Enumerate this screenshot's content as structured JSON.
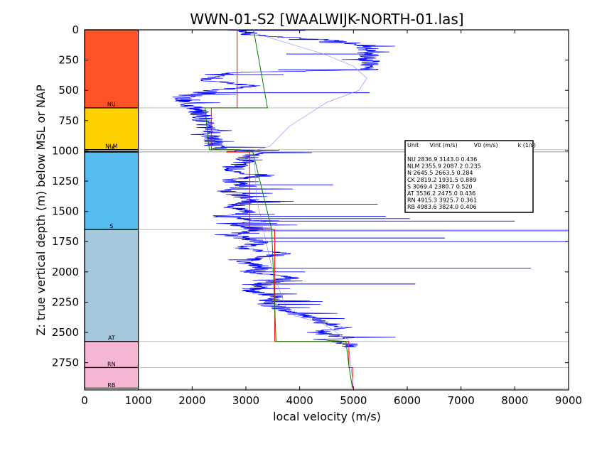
{
  "chart_data": {
    "type": "line",
    "title": "WWN-01-S2 [WAALWIJK-NORTH-01.las]",
    "xlabel": "local velocity (m/s)",
    "ylabel": "Z: true vertical depth (m) below MSL or NAP",
    "xlim": [
      0,
      9000
    ],
    "ylim": [
      2975,
      0
    ],
    "x_ticks": [
      "0",
      "1000",
      "2000",
      "3000",
      "4000",
      "5000",
      "6000",
      "7000",
      "8000",
      "9000"
    ],
    "x_tick_values": [
      0,
      1000,
      2000,
      3000,
      4000,
      5000,
      6000,
      7000,
      8000,
      9000
    ],
    "y_ticks": [
      "0",
      "250",
      "500",
      "750",
      "1000",
      "1250",
      "1500",
      "1750",
      "2000",
      "2250",
      "2500",
      "2750"
    ],
    "y_tick_values": [
      0,
      250,
      500,
      750,
      1000,
      1250,
      1500,
      1750,
      2000,
      2250,
      2500,
      2750
    ],
    "grid": false,
    "units": [
      {
        "name": "NU",
        "top": 0,
        "base": 645,
        "color": "#FF5226"
      },
      {
        "name": "NLM",
        "top": 645,
        "base": 990,
        "color": "#FFD000"
      },
      {
        "name": "CK",
        "top": 990,
        "base": 1005,
        "color": "#E6E6E6"
      },
      {
        "name": "N",
        "top": 1005,
        "base": 1010,
        "color": "#C8C8C8"
      },
      {
        "name": "S",
        "top": 1010,
        "base": 1650,
        "color": "#55BCEF"
      },
      {
        "name": "AT",
        "top": 1650,
        "base": 2575,
        "color": "#A6C8DC"
      },
      {
        "name": "RN",
        "top": 2575,
        "base": 2790,
        "color": "#F4B6D4"
      },
      {
        "name": "RB",
        "top": 2790,
        "base": 2960,
        "color": "#F4B6D4"
      }
    ],
    "unit_labels": [
      {
        "text": "NU",
        "depth": 613
      },
      {
        "text": "NLM",
        "depth": 960
      },
      {
        "text": "CK",
        "depth": 975
      },
      {
        "text": "S",
        "depth": 1620
      },
      {
        "text": "AT",
        "depth": 2545
      },
      {
        "text": "RN",
        "depth": 2760
      },
      {
        "text": "RB",
        "depth": 2935
      }
    ],
    "boundaries": [
      645,
      990,
      1005,
      1010,
      1650,
      2575,
      2790,
      2960
    ],
    "table": {
      "header": "Unit      Vint (m/s)         V0 (m/s)           k (1/s)",
      "rows": [
        {
          "unit": "NU",
          "vint": 2836.9,
          "v0": 3143.0,
          "k": 0.436
        },
        {
          "unit": "NLM",
          "vint": 2355.9,
          "v0": 2087.2,
          "k": 0.235
        },
        {
          "unit": "N",
          "vint": 2645.5,
          "v0": 2663.5,
          "k": 0.284
        },
        {
          "unit": "CK",
          "vint": 2819.2,
          "v0": 1931.5,
          "k": 0.889
        },
        {
          "unit": "S",
          "vint": 3069.4,
          "v0": 2380.7,
          "k": 0.52
        },
        {
          "unit": "AT",
          "vint": 3536.2,
          "v0": 2475.0,
          "k": 0.436
        },
        {
          "unit": "RN",
          "vint": 4915.3,
          "v0": 3925.7,
          "k": 0.361
        },
        {
          "unit": "RB",
          "vint": 4983.6,
          "v0": 3824.0,
          "k": 0.406
        }
      ],
      "row_texts": [
        "NU        2836.9   3143.0  0.436",
        "NLM       2355.9   2087.2  0.235",
        "N         2645.5   2663.5  0.284",
        "CK        2819.2   1931.5  0.889",
        "S         3069.4   2380.7  0.520",
        "AT        3536.2   2475.0  0.436",
        "RN        4915.3   3925.7  0.361",
        "RB        4983.6   3824.0  0.406"
      ]
    },
    "series": [
      {
        "color": "#0000FF",
        "style": "jagged-log",
        "x": [
          2820,
          3060,
          3040,
          4680,
          5260,
          5300,
          3100,
          2430,
          2350,
          3120,
          2100,
          1930,
          1790,
          1880,
          1990,
          2090,
          2460,
          3160,
          2720,
          3440,
          2650,
          3020,
          2650,
          3060,
          2750,
          3170,
          2450,
          3340,
          2640,
          3180,
          2750,
          3340,
          2790,
          3700,
          2900,
          3330,
          3130,
          3830,
          3400,
          3060,
          3550,
          3340,
          4200,
          4760,
          4300,
          4950,
          4580,
          4950,
          4880
        ],
        "y": [
          0,
          20,
          40,
          90,
          130,
          330,
          350,
          365,
          420,
          460,
          520,
          540,
          580,
          600,
          630,
          640,
          980,
          1010,
          1180,
          1200,
          1240,
          1290,
          1330,
          1400,
          1470,
          1510,
          1540,
          1580,
          1600,
          1640,
          1700,
          1760,
          1800,
          1850,
          1920,
          1960,
          2000,
          2050,
          2090,
          2150,
          2200,
          2260,
          2380,
          2460,
          2500,
          2540,
          2560,
          2600,
          2620
        ]
      },
      {
        "color": "#0000FF",
        "style": "spikes",
        "x": [
          4100,
          3800,
          3750,
          3600,
          3700,
          2800,
          5300,
          2150,
          2600,
          4620,
          5450,
          3050,
          5600,
          6050,
          8000,
          3580,
          2900,
          6700,
          9000,
          3250,
          9000,
          2680,
          8300,
          4100,
          6150,
          2950
        ],
        "y": [
          5,
          80,
          200,
          330,
          370,
          450,
          520,
          580,
          1130,
          1280,
          1440,
          1560,
          1540,
          1560,
          1580,
          1600,
          1630,
          1720,
          1660,
          1680,
          1750,
          1900,
          1970,
          2000,
          2100,
          2150
        ]
      },
      {
        "color": "#FF0000",
        "style": "step",
        "x": [
          2836.9,
          2836.9,
          2355.9,
          2355.9,
          2819.2,
          2819.2,
          2645.5,
          2645.5,
          3069.4,
          3069.4,
          3536.2,
          3536.2,
          4915.3,
          4915.3,
          4983.6,
          4983.6
        ],
        "y": [
          0,
          645,
          645,
          990,
          990,
          1005,
          1005,
          1010,
          1010,
          1650,
          1650,
          2575,
          2575,
          2790,
          2790,
          2960
        ]
      },
      {
        "color": "#008000",
        "style": "linear-trend",
        "x": [
          3143,
          3400,
          2240,
          2320,
          2900,
          3050,
          3130,
          3480,
          3560,
          4860,
          4920,
          4980
        ],
        "y": [
          0,
          645,
          645,
          990,
          990,
          1005,
          1010,
          1650,
          2575,
          2575,
          2790,
          2960
        ]
      },
      {
        "color": "#8080FF",
        "style": "thin-curve",
        "x": [
          3100,
          3700,
          4450,
          5000,
          5250,
          5100,
          4500,
          3800,
          3450,
          3150,
          3200,
          3500,
          3750,
          3900,
          4050,
          4400,
          4900,
          5000
        ],
        "y": [
          20,
          100,
          200,
          300,
          400,
          500,
          600,
          800,
          960,
          1000,
          1400,
          2000,
          2300,
          2360,
          2380,
          2420,
          2560,
          2960
        ]
      }
    ]
  }
}
